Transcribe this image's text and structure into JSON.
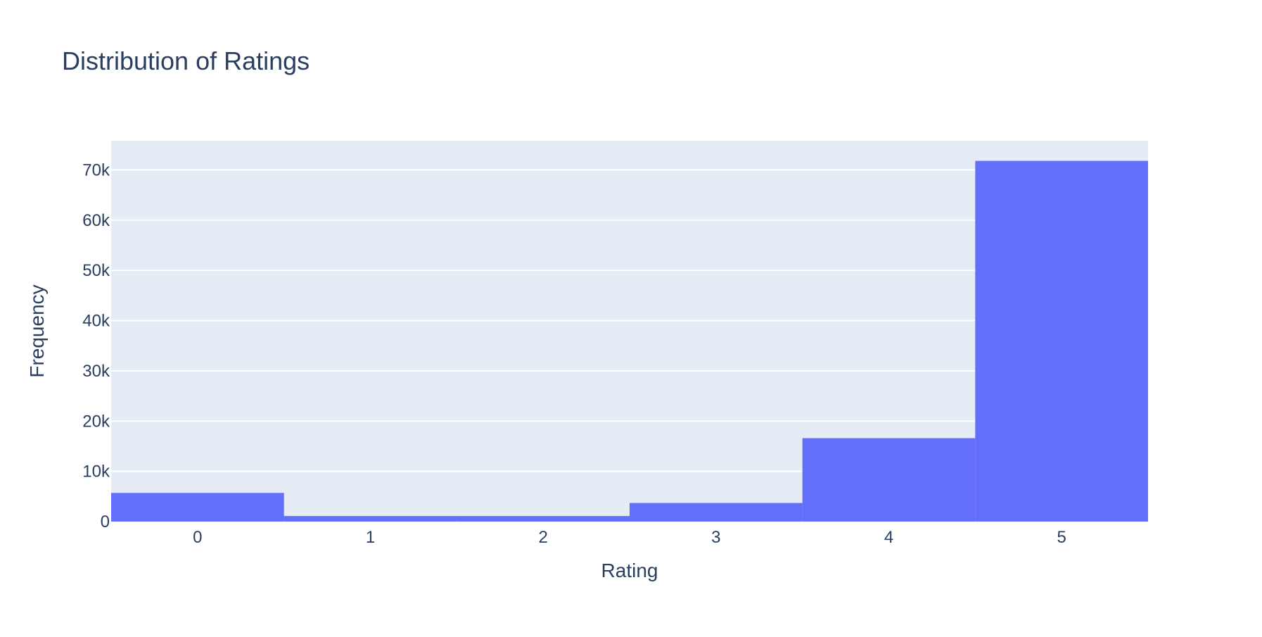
{
  "chart_data": {
    "type": "bar",
    "title": "Distribution of Ratings",
    "xlabel": "Rating",
    "ylabel": "Frequency",
    "categories": [
      "0",
      "1",
      "2",
      "3",
      "4",
      "5"
    ],
    "values": [
      5700,
      1100,
      1100,
      3700,
      16600,
      71800
    ],
    "ylim": [
      0,
      75800
    ],
    "yticks": [
      0,
      10000,
      20000,
      30000,
      40000,
      50000,
      60000,
      70000
    ],
    "ytick_labels": [
      "0",
      "10k",
      "20k",
      "30k",
      "40k",
      "50k",
      "60k",
      "70k"
    ],
    "grid": true,
    "legend": "none",
    "colors": {
      "bar": "#636efa",
      "plot_bg": "#e5ecf6",
      "grid": "#ffffff",
      "text": "#2a3f5f"
    }
  }
}
